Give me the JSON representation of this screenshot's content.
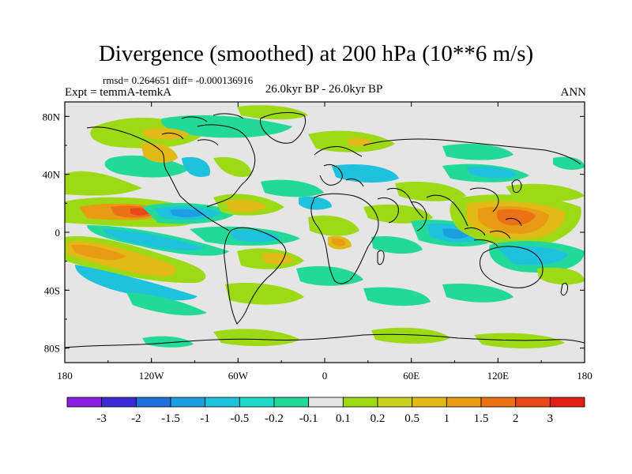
{
  "title": "Divergence (smoothed) at 200 hPa (10**6 m/s)",
  "stats": "rmsd= 0.264651 diff= -0.000136916",
  "expt": "Expt = temmA-temkA",
  "period": "26.0kyr BP - 26.0kyr BP",
  "season": "ANN",
  "axes": {
    "lon_labels": [
      "180",
      "120W",
      "60W",
      "0",
      "60E",
      "120E",
      "180"
    ],
    "lat_labels": [
      "80N",
      "40N",
      "0",
      "40S",
      "80S"
    ],
    "lon_range": [
      -180,
      180
    ],
    "lat_range": [
      -90,
      90
    ]
  },
  "colorbar": {
    "labels": [
      "-3",
      "-2",
      "-1.5",
      "-1",
      "-0.5",
      "-0.2",
      "-0.1",
      "0.1",
      "0.2",
      "0.5",
      "1",
      "1.5",
      "2",
      "3"
    ],
    "colors": [
      "#8a1fe3",
      "#3b2bd6",
      "#1f6fdc",
      "#1c9ee0",
      "#1ec2dc",
      "#1fd8c8",
      "#23d99a",
      "#e5e5e5",
      "#9dd915",
      "#c9d21c",
      "#e2ba18",
      "#e99b15",
      "#ec7016",
      "#e8471a",
      "#e01f14"
    ]
  },
  "palette": {
    "background": "#e5e5e5",
    "pos_light": "#9dd915",
    "pos_mid": "#c9d21c",
    "pos_gold": "#e2ba18",
    "pos_orange": "#e99b15",
    "pos_dorange": "#ec7016",
    "pos_red": "#e8471a",
    "neg_green": "#23d99a",
    "neg_teal": "#1fd8c8",
    "neg_cyan": "#1ec2dc",
    "neg_blue": "#1c9ee0"
  }
}
